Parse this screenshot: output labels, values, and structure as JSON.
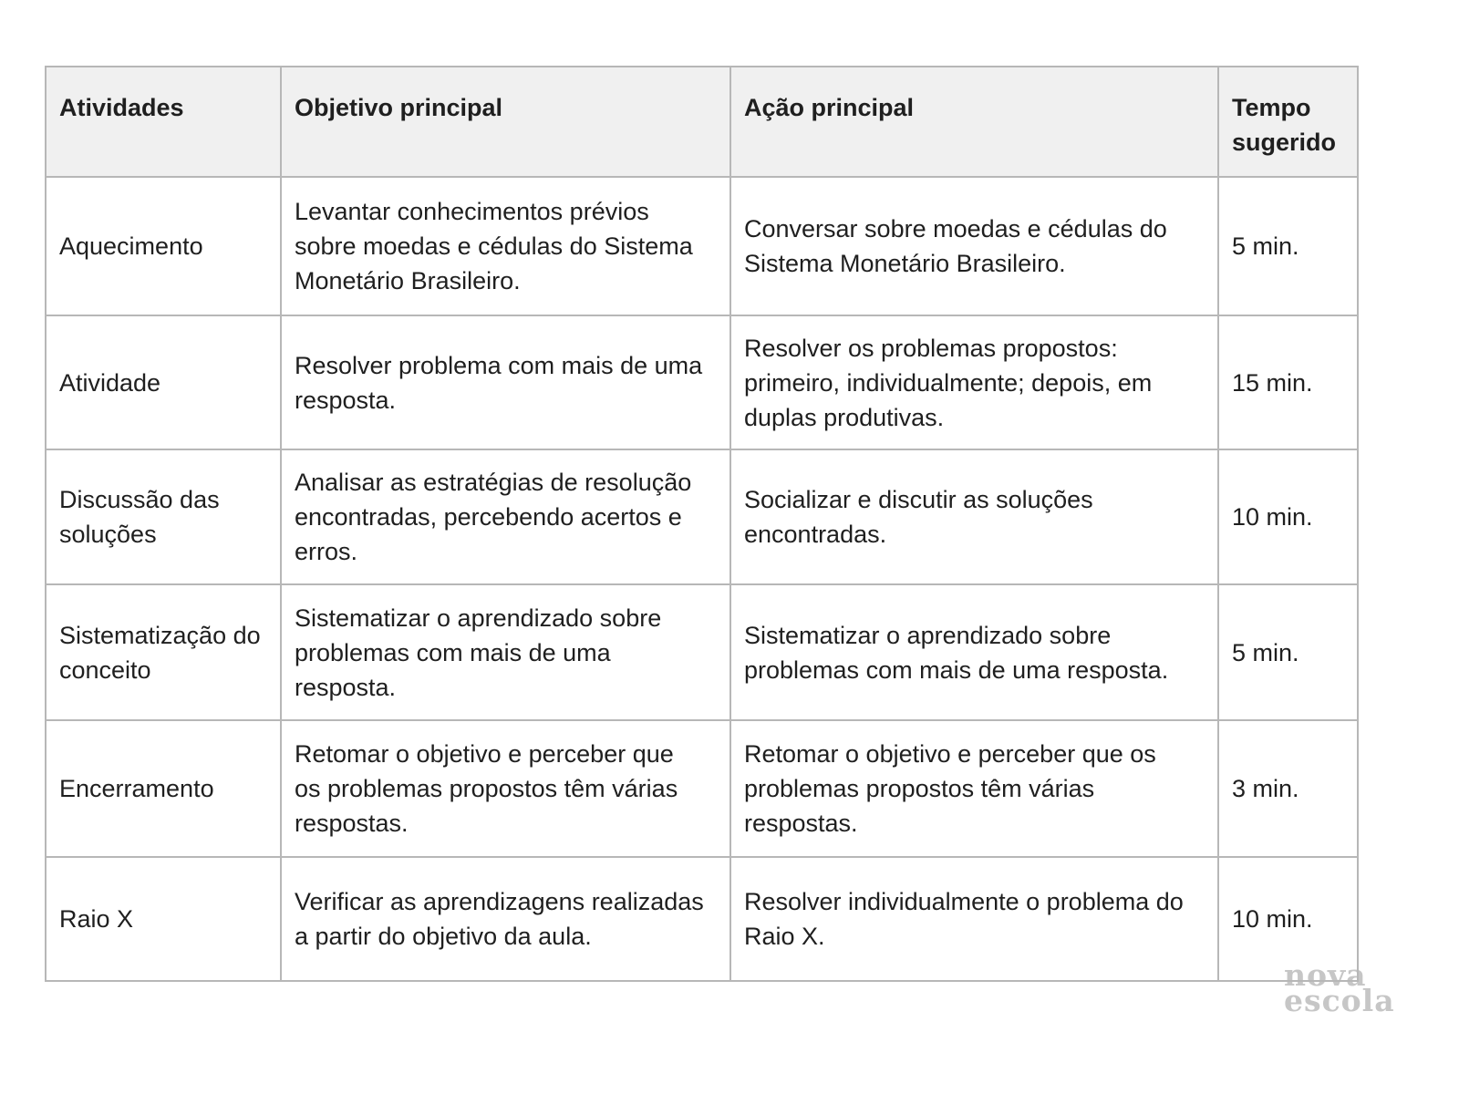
{
  "table": {
    "headers": [
      "Atividades",
      "Objetivo principal",
      "Ação principal",
      "Tempo\nsugerido"
    ],
    "rows": [
      {
        "atividade": "Aquecimento",
        "objetivo": "Levantar conhecimentos prévios\nsobre moedas e cédulas do Sistema\nMonetário Brasileiro.",
        "acao": "Conversar sobre moedas e cédulas do\nSistema Monetário Brasileiro.",
        "tempo": "5 min."
      },
      {
        "atividade": "Atividade",
        "objetivo": "Resolver problema com mais de uma\nresposta.",
        "acao": "Resolver os problemas propostos:\nprimeiro, individualmente; depois, em\nduplas produtivas.",
        "tempo": "15 min."
      },
      {
        "atividade": "Discussão das\nsoluções",
        "objetivo": "Analisar as estratégias de resolução\nencontradas, percebendo acertos e\nerros.",
        "acao": "Socializar e discutir as soluções\nencontradas.",
        "tempo": "10 min."
      },
      {
        "atividade": "Sistematização do\nconceito",
        "objetivo": "Sistematizar o aprendizado sobre\nproblemas com mais de uma\nresposta.",
        "acao": "Sistematizar o aprendizado sobre\nproblemas com mais de uma resposta.",
        "tempo": "5 min."
      },
      {
        "atividade": "Encerramento",
        "objetivo": "Retomar o objetivo e perceber que\nos problemas propostos têm várias\nrespostas.",
        "acao": "Retomar o objetivo e perceber que os\nproblemas propostos têm várias\nrespostas.",
        "tempo": "3 min."
      },
      {
        "atividade": "Raio X",
        "objetivo": "Verificar as aprendizagens realizadas\na partir do objetivo da aula.",
        "acao": "Resolver individualmente o problema do\nRaio X.",
        "tempo": "10 min."
      }
    ]
  },
  "watermark": {
    "line1": "nova",
    "line2": "escola"
  },
  "colors": {
    "border": "#b7b7b7",
    "header_bg": "#f0f0f0",
    "text": "#1f1f1f",
    "watermark": "#c6c6c6"
  }
}
